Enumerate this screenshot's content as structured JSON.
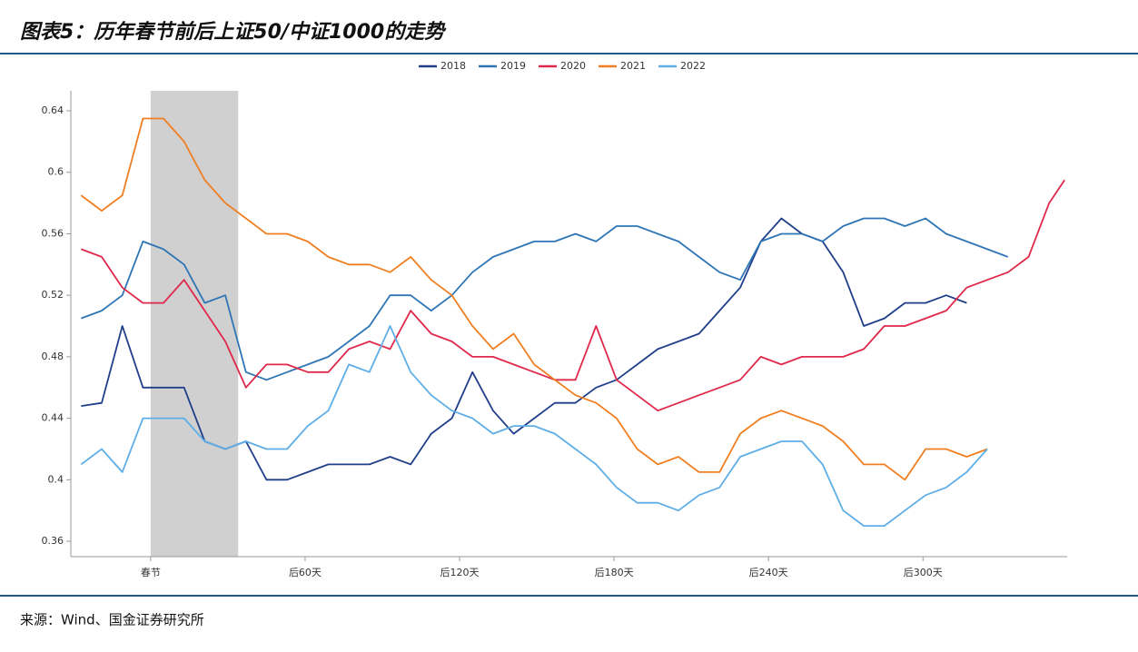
{
  "header": {
    "title": "图表5：历年春节前后上证50/中证1000的走势"
  },
  "chart_data": {
    "type": "line",
    "x": [
      -27,
      -19,
      -11,
      -3,
      5,
      13,
      21,
      29,
      37,
      45,
      53,
      61,
      69,
      77,
      85,
      93,
      101,
      109,
      117,
      125,
      133,
      141,
      149,
      157,
      165,
      173,
      181,
      189,
      197,
      205,
      213,
      221,
      229,
      237,
      245,
      253,
      261,
      269,
      277,
      285,
      293,
      301,
      309,
      317,
      325,
      333,
      341,
      349,
      355
    ],
    "xlim": [
      -31,
      356
    ],
    "xticks": [
      {
        "value": 0,
        "label": "春节"
      },
      {
        "value": 60,
        "label": "后60天"
      },
      {
        "value": 120,
        "label": "后120天"
      },
      {
        "value": 180,
        "label": "后180天"
      },
      {
        "value": 240,
        "label": "后240天"
      },
      {
        "value": 300,
        "label": "后300天"
      }
    ],
    "ylim": [
      0.35,
      0.653
    ],
    "yticks": [
      0.36,
      0.4,
      0.44,
      0.48,
      0.52,
      0.56,
      0.6,
      0.64
    ],
    "shaded_x": [
      0,
      34
    ],
    "legend": "top",
    "series": [
      {
        "name": "2018",
        "color": "#203f8a",
        "values": [
          0.448,
          0.45,
          0.5,
          0.46,
          0.46,
          0.46,
          0.425,
          0.42,
          0.425,
          0.4,
          0.4,
          0.405,
          0.41,
          0.41,
          0.41,
          0.415,
          0.41,
          0.43,
          0.44,
          0.47,
          0.445,
          0.43,
          0.44,
          0.45,
          0.45,
          0.46,
          0.465,
          0.475,
          0.485,
          0.49,
          0.495,
          0.51,
          0.525,
          0.555,
          0.57,
          0.56,
          0.555,
          0.535,
          0.5,
          0.505,
          0.515,
          0.515,
          0.52,
          0.515,
          null,
          null,
          null,
          null,
          null
        ]
      },
      {
        "name": "2019",
        "color": "#2e75b6",
        "values": [
          0.505,
          0.51,
          0.52,
          0.555,
          0.55,
          0.54,
          0.515,
          0.52,
          0.47,
          0.465,
          0.47,
          0.475,
          0.48,
          0.49,
          0.5,
          0.52,
          0.52,
          0.51,
          0.52,
          0.535,
          0.545,
          0.55,
          0.555,
          0.555,
          0.56,
          0.555,
          0.565,
          0.565,
          0.56,
          0.555,
          0.545,
          0.535,
          0.53,
          0.555,
          0.56,
          0.56,
          0.555,
          0.565,
          0.57,
          0.57,
          0.565,
          0.57,
          0.56,
          0.555,
          0.55,
          0.545,
          null,
          null,
          null
        ]
      },
      {
        "name": "2020",
        "color": "#e0284a",
        "values": [
          0.55,
          0.545,
          0.525,
          0.515,
          0.515,
          0.53,
          0.51,
          0.49,
          0.46,
          0.475,
          0.475,
          0.47,
          0.47,
          0.485,
          0.49,
          0.485,
          0.51,
          0.495,
          0.49,
          0.48,
          0.48,
          0.475,
          0.47,
          0.465,
          0.465,
          0.5,
          0.465,
          0.455,
          0.445,
          0.45,
          0.455,
          0.46,
          0.465,
          0.48,
          0.475,
          0.48,
          0.48,
          0.48,
          0.485,
          0.5,
          0.5,
          0.505,
          0.51,
          0.525,
          0.53,
          0.535,
          0.545,
          0.58,
          0.595
        ]
      },
      {
        "name": "2021",
        "color": "#f07f22",
        "values": [
          0.585,
          0.575,
          0.585,
          0.635,
          0.635,
          0.62,
          0.595,
          0.58,
          0.57,
          0.56,
          0.56,
          0.555,
          0.545,
          0.54,
          0.54,
          0.535,
          0.545,
          0.53,
          0.52,
          0.5,
          0.485,
          0.495,
          0.475,
          0.465,
          0.455,
          0.45,
          0.44,
          0.42,
          0.41,
          0.415,
          0.405,
          0.405,
          0.43,
          0.44,
          0.445,
          0.44,
          0.435,
          0.425,
          0.41,
          0.41,
          0.4,
          0.42,
          0.42,
          0.415,
          0.42,
          null,
          null,
          null,
          null
        ]
      },
      {
        "name": "2022",
        "color": "#5eaee8",
        "values": [
          0.41,
          0.42,
          0.405,
          0.44,
          0.44,
          0.44,
          0.425,
          0.42,
          0.425,
          0.42,
          0.42,
          0.435,
          0.445,
          0.475,
          0.47,
          0.5,
          0.47,
          0.455,
          0.445,
          0.44,
          0.43,
          0.435,
          0.435,
          0.43,
          0.42,
          0.41,
          0.395,
          0.385,
          0.385,
          0.38,
          0.39,
          0.395,
          0.415,
          0.42,
          0.425,
          0.425,
          0.41,
          0.38,
          0.37,
          0.37,
          0.38,
          0.39,
          0.395,
          0.405,
          0.42,
          null,
          null,
          null,
          null
        ]
      }
    ]
  },
  "footer": {
    "source": "来源：Wind、国金证券研究所"
  }
}
